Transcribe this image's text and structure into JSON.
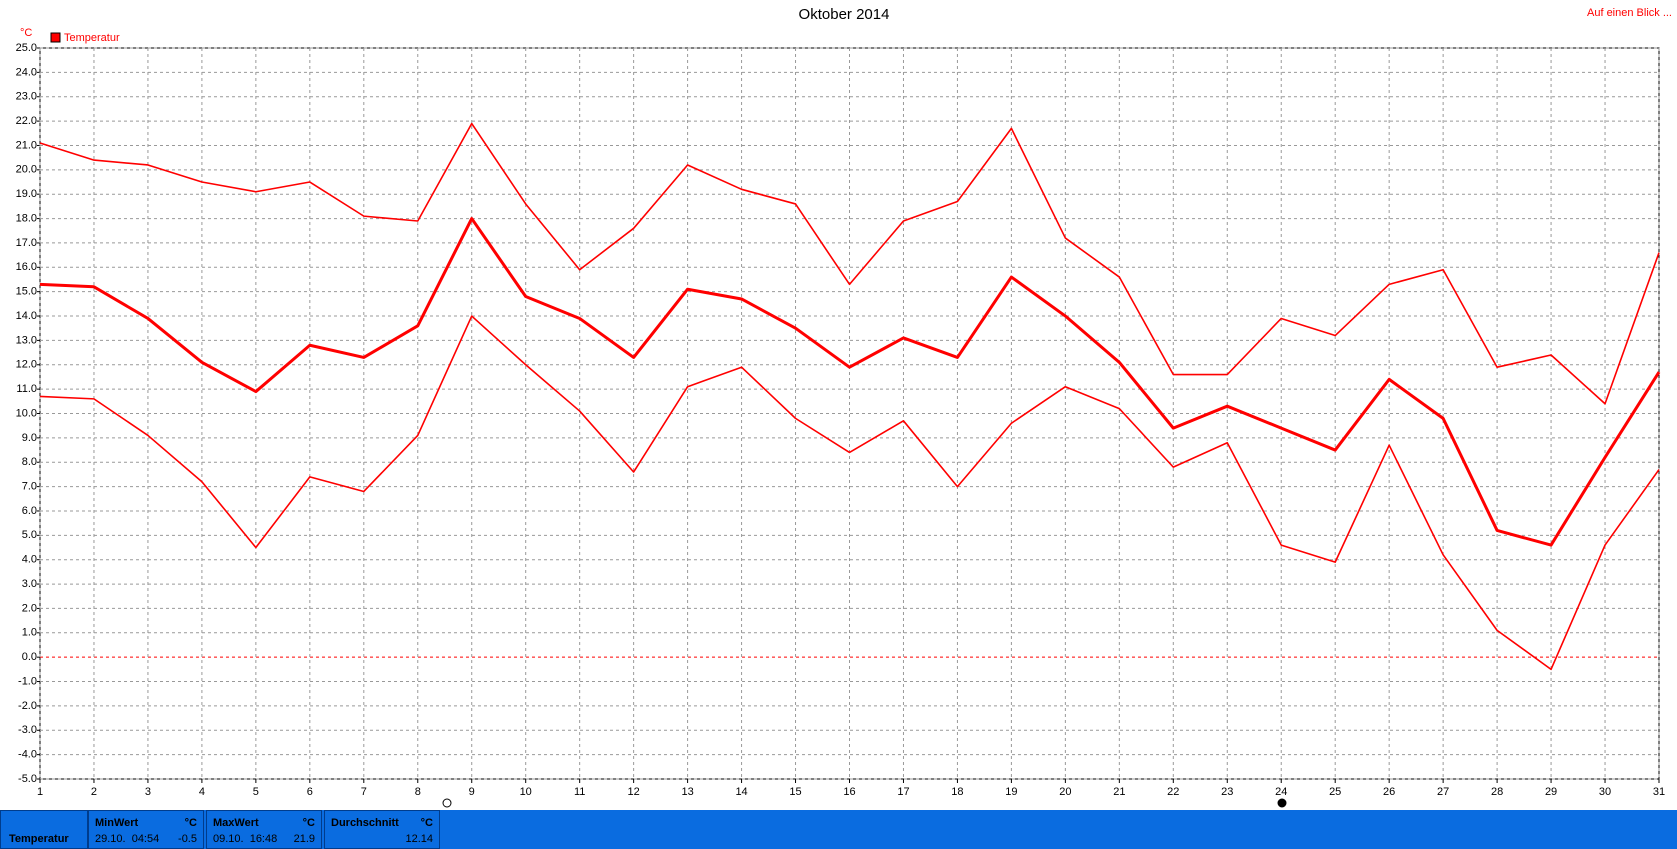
{
  "chart_data": {
    "type": "line",
    "title": "Oktober 2014",
    "y_unit": "°C",
    "link": "Auf einen Blick ...",
    "x": [
      1,
      2,
      3,
      4,
      5,
      6,
      7,
      8,
      9,
      10,
      11,
      12,
      13,
      14,
      15,
      16,
      17,
      18,
      19,
      20,
      21,
      22,
      23,
      24,
      25,
      26,
      27,
      28,
      29,
      30,
      31
    ],
    "xlim": [
      1,
      31
    ],
    "xticks": [
      1,
      2,
      3,
      4,
      5,
      6,
      7,
      8,
      9,
      10,
      11,
      12,
      13,
      14,
      15,
      16,
      17,
      18,
      19,
      20,
      21,
      22,
      23,
      24,
      25,
      26,
      27,
      28,
      29,
      30,
      31
    ],
    "ylim": [
      -5,
      25
    ],
    "yticks": [
      {
        "value": -5,
        "label": "-5.0"
      },
      {
        "value": -4,
        "label": "-4.0"
      },
      {
        "value": -3,
        "label": "-3.0"
      },
      {
        "value": -2,
        "label": "-2.0"
      },
      {
        "value": -1,
        "label": "-1.0"
      },
      {
        "value": 0,
        "label": "0.0"
      },
      {
        "value": 1,
        "label": "1.0"
      },
      {
        "value": 2,
        "label": "2.0"
      },
      {
        "value": 3,
        "label": "3.0"
      },
      {
        "value": 4,
        "label": "4.0"
      },
      {
        "value": 5,
        "label": "5.0"
      },
      {
        "value": 6,
        "label": "6.0"
      },
      {
        "value": 7,
        "label": "7.0"
      },
      {
        "value": 8,
        "label": "8.0"
      },
      {
        "value": 9,
        "label": "9.0"
      },
      {
        "value": 10,
        "label": "10.0"
      },
      {
        "value": 11,
        "label": "11.0"
      },
      {
        "value": 12,
        "label": "12.0"
      },
      {
        "value": 13,
        "label": "13.0"
      },
      {
        "value": 14,
        "label": "14.0"
      },
      {
        "value": 15,
        "label": "15.0"
      },
      {
        "value": 16,
        "label": "16.0"
      },
      {
        "value": 17,
        "label": "17.0"
      },
      {
        "value": 18,
        "label": "18.0"
      },
      {
        "value": 19,
        "label": "19.0"
      },
      {
        "value": 20,
        "label": "20.0"
      },
      {
        "value": 21,
        "label": "21.0"
      },
      {
        "value": 22,
        "label": "22.0"
      },
      {
        "value": 23,
        "label": "23.0"
      },
      {
        "value": 24,
        "label": "24.0"
      },
      {
        "value": 25,
        "label": "25.0"
      }
    ],
    "grid": true,
    "series": [
      {
        "name": "Temperatur",
        "color": "#ff0000",
        "values": [
          15.3,
          15.2,
          13.9,
          12.1,
          10.9,
          12.8,
          12.3,
          13.6,
          18.0,
          14.8,
          13.9,
          12.3,
          15.1,
          14.7,
          13.5,
          11.9,
          13.1,
          12.3,
          15.6,
          14.0,
          12.1,
          9.4,
          10.3,
          9.4,
          8.5,
          11.4,
          9.8,
          5.2,
          4.6,
          8.2,
          11.7
        ]
      },
      {
        "color": "#ff0000",
        "values": [
          21.1,
          20.4,
          20.2,
          19.5,
          19.1,
          19.5,
          18.1,
          17.9,
          21.9,
          18.6,
          15.9,
          17.6,
          20.2,
          19.2,
          18.6,
          15.3,
          17.9,
          18.7,
          21.7,
          17.2,
          15.6,
          11.6,
          11.6,
          13.9,
          13.2,
          15.3,
          15.9,
          11.9,
          12.4,
          10.4,
          16.6
        ]
      },
      {
        "color": "#ff0000",
        "values": [
          10.7,
          10.6,
          9.1,
          7.2,
          4.5,
          7.4,
          6.8,
          9.1,
          14.0,
          12.0,
          10.1,
          7.6,
          11.1,
          11.9,
          9.8,
          8.4,
          9.7,
          7.0,
          9.6,
          11.1,
          10.2,
          7.8,
          8.8,
          4.6,
          3.9,
          8.7,
          4.2,
          1.1,
          -0.5,
          4.6,
          7.7
        ]
      }
    ]
  },
  "summary": {
    "label": "Temperatur",
    "min": {
      "title": "MinWert",
      "unit": "°C",
      "time": "29.10.  04:54",
      "value": -0.5
    },
    "max": {
      "title": "MaxWert",
      "unit": "°C",
      "time": "09.10.  16:48",
      "value": 21.9
    },
    "avg": {
      "title": "Durchschnitt",
      "unit": "°C",
      "value": 12.14
    }
  }
}
